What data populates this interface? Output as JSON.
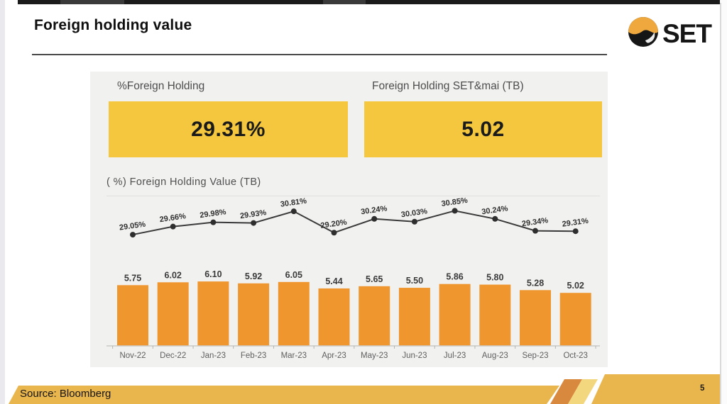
{
  "header": {
    "title": "Foreign holding value",
    "logo": {
      "text": "SET",
      "icon": "set-circle-logo"
    }
  },
  "metrics": {
    "left": {
      "label": "%Foreign Holding",
      "value": "29.31%"
    },
    "right": {
      "label": "Foreign Holding SET&mai (TB)",
      "value": "5.02"
    }
  },
  "chart_data": {
    "type": "bar",
    "title": "( %) Foreign Holding Value (TB)",
    "categories": [
      "Nov-22",
      "Dec-22",
      "Jan-23",
      "Feb-23",
      "Mar-23",
      "Apr-23",
      "May-23",
      "Jun-23",
      "Jul-23",
      "Aug-23",
      "Sep-23",
      "Oct-23"
    ],
    "series": [
      {
        "name": "% Foreign Holding",
        "type": "line",
        "values": [
          29.05,
          29.66,
          29.98,
          29.93,
          30.81,
          29.2,
          30.24,
          30.03,
          30.85,
          30.24,
          29.34,
          29.31
        ],
        "label_format": "percent2"
      },
      {
        "name": "Foreign Holding Value (TB)",
        "type": "bar",
        "values": [
          5.75,
          6.02,
          6.1,
          5.92,
          6.05,
          5.44,
          5.65,
          5.5,
          5.86,
          5.8,
          5.28,
          5.02
        ],
        "label_format": "fixed2"
      }
    ],
    "value_labels": true,
    "legend": "none",
    "grid": false,
    "ylim_line": [
      29.0,
      31.0
    ],
    "ylim_bar": [
      0,
      6.5
    ]
  },
  "footer": {
    "source": "Source: Bloomberg",
    "page_number": "5"
  },
  "colors": {
    "bar": "#F0962F",
    "line": "#3A3A3A",
    "point": "#2E2E2E",
    "metric_box": "#F4C73F",
    "footer_gold": "#E9B54D",
    "stripe_dark": "#D8893D",
    "stripe_light": "#F3D77E",
    "logo_orange": "#EEA83E",
    "panel_bg": "#F1F1F0"
  }
}
